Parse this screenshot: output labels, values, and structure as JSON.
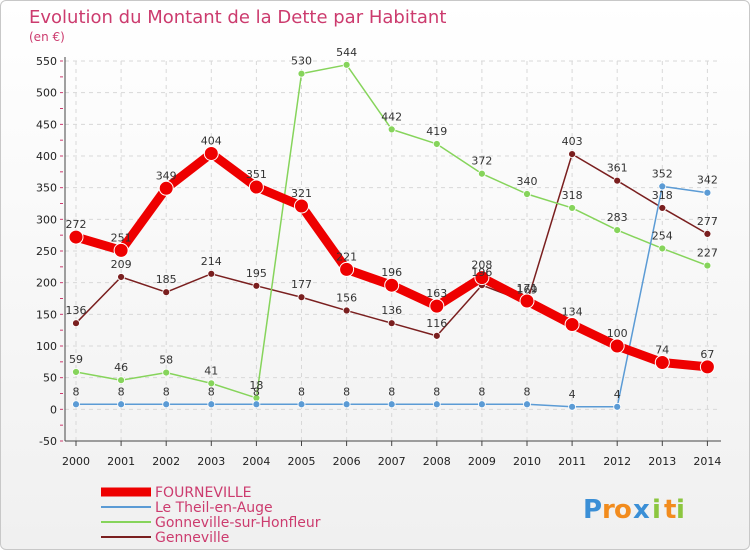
{
  "chart_data": {
    "type": "line",
    "title": "Evolution du Montant de la Dette par Habitant",
    "subtitle": "(en €)",
    "xlabel": "",
    "ylabel": "",
    "x": [
      "2000",
      "2001",
      "2002",
      "2003",
      "2004",
      "2005",
      "2006",
      "2007",
      "2008",
      "2009",
      "2010",
      "2011",
      "2012",
      "2013",
      "2014"
    ],
    "ylim": [
      -50,
      550
    ],
    "yticks": [
      -50,
      0,
      50,
      100,
      150,
      200,
      250,
      300,
      350,
      400,
      450,
      500,
      550
    ],
    "grid": true,
    "legend_position": "bottom-left",
    "series": [
      {
        "name": "FOURNEVILLE",
        "color": "#ee0000",
        "values": [
          272,
          251,
          349,
          404,
          351,
          321,
          221,
          196,
          163,
          208,
          171,
          134,
          100,
          74,
          67
        ],
        "labels": [
          "272",
          "251",
          "349",
          "404",
          "351",
          "321",
          "221",
          "196",
          "163",
          "208",
          "171",
          "134",
          "100",
          "74",
          "67"
        ]
      },
      {
        "name": "Le Theil-en-Auge",
        "color": "#5b9bd5",
        "values": [
          8,
          8,
          8,
          8,
          8,
          8,
          8,
          8,
          8,
          8,
          8,
          4,
          4,
          352,
          342
        ],
        "labels": [
          "8",
          "8",
          "8",
          "8",
          "8",
          "8",
          "8",
          "8",
          "8",
          "8",
          "8",
          "4",
          "4",
          "352",
          "342"
        ]
      },
      {
        "name": "Gonneville-sur-Honfleur",
        "color": "#86d45b",
        "values": [
          59,
          46,
          58,
          41,
          18,
          530,
          544,
          442,
          419,
          372,
          340,
          318,
          283,
          254,
          227
        ],
        "labels": [
          "59",
          "46",
          "58",
          "41",
          "18",
          "530",
          "544",
          "442",
          "419",
          "372",
          "340",
          "318",
          "283",
          "254",
          "227"
        ]
      },
      {
        "name": "Genneville",
        "color": "#7a1f1f",
        "values": [
          136,
          209,
          185,
          214,
          195,
          177,
          156,
          136,
          116,
          196,
          169,
          403,
          361,
          318,
          277
        ],
        "labels": [
          "136",
          "209",
          "185",
          "214",
          "195",
          "177",
          "156",
          "136",
          "116",
          "196",
          "169",
          "403",
          "361",
          "318",
          "277"
        ]
      }
    ]
  },
  "logo": {
    "text": "Proxiti",
    "letters": [
      "P",
      "r",
      "o",
      "x",
      "i",
      "t",
      "i"
    ],
    "colors": [
      "#3b8fd6",
      "#f28c1e",
      "#f28c1e",
      "#3b8fd6",
      "#8cc63f",
      "#f28c1e",
      "#8cc63f"
    ]
  }
}
